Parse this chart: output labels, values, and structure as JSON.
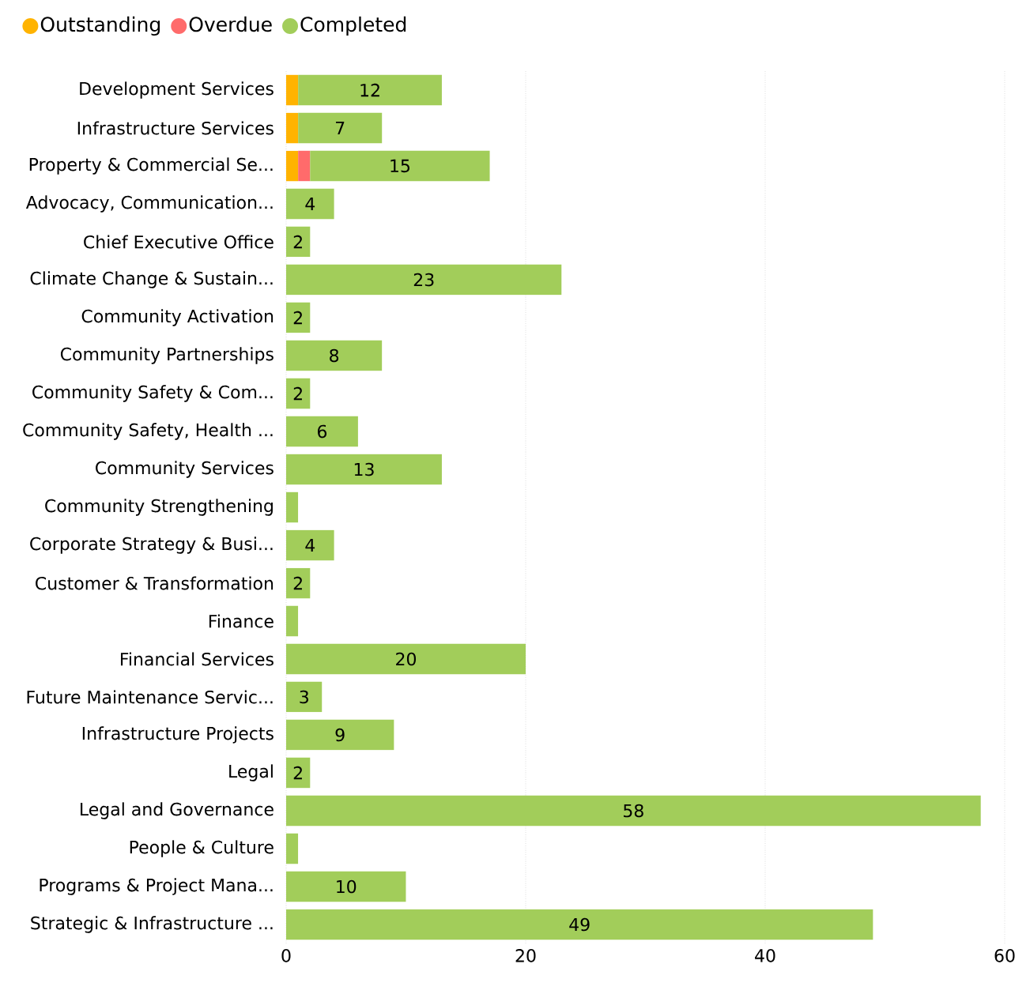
{
  "chart_data": {
    "type": "bar",
    "orientation": "horizontal",
    "stacked": true,
    "categories": [
      "Development Services",
      "Infrastructure Services",
      "Property & Commercial Se...",
      "Advocacy, Communication...",
      "Chief Executive Office",
      "Climate Change & Sustain...",
      "Community Activation",
      "Community Partnerships",
      "Community Safety & Com...",
      "Community Safety, Health ...",
      "Community Services",
      "Community Strengthening",
      "Corporate Strategy & Busi...",
      "Customer & Transformation",
      "Finance",
      "Financial Services",
      "Future Maintenance Servic...",
      "Infrastructure Projects",
      "Legal",
      "Legal and Governance",
      "People & Culture",
      "Programs & Project Mana...",
      "Strategic & Infrastructure ..."
    ],
    "series": [
      {
        "name": "Outstanding",
        "color": "#ffb300",
        "values": [
          1,
          1,
          1,
          null,
          null,
          null,
          null,
          null,
          null,
          null,
          null,
          null,
          null,
          null,
          null,
          null,
          null,
          null,
          null,
          null,
          null,
          null,
          null
        ]
      },
      {
        "name": "Overdue",
        "color": "#ff6b6b",
        "values": [
          null,
          null,
          1,
          null,
          null,
          null,
          null,
          null,
          null,
          null,
          null,
          null,
          null,
          null,
          null,
          null,
          null,
          null,
          null,
          null,
          null,
          null,
          null
        ]
      },
      {
        "name": "Completed",
        "color": "#a2cd5a",
        "values": [
          12,
          7,
          15,
          4,
          2,
          23,
          2,
          8,
          2,
          6,
          13,
          1,
          4,
          2,
          1,
          20,
          3,
          9,
          2,
          58,
          1,
          10,
          49
        ],
        "value_labels": [
          "12",
          "7",
          "15",
          "4",
          "2",
          "23",
          "2",
          "8",
          "2",
          "6",
          "13",
          null,
          "4",
          "2",
          null,
          "20",
          "3",
          "9",
          "2",
          "58",
          null,
          "10",
          "49"
        ]
      }
    ],
    "xlim": [
      0,
      60
    ],
    "xticks": [
      0,
      20,
      40,
      60
    ],
    "grid": "x",
    "legend": "top left"
  }
}
